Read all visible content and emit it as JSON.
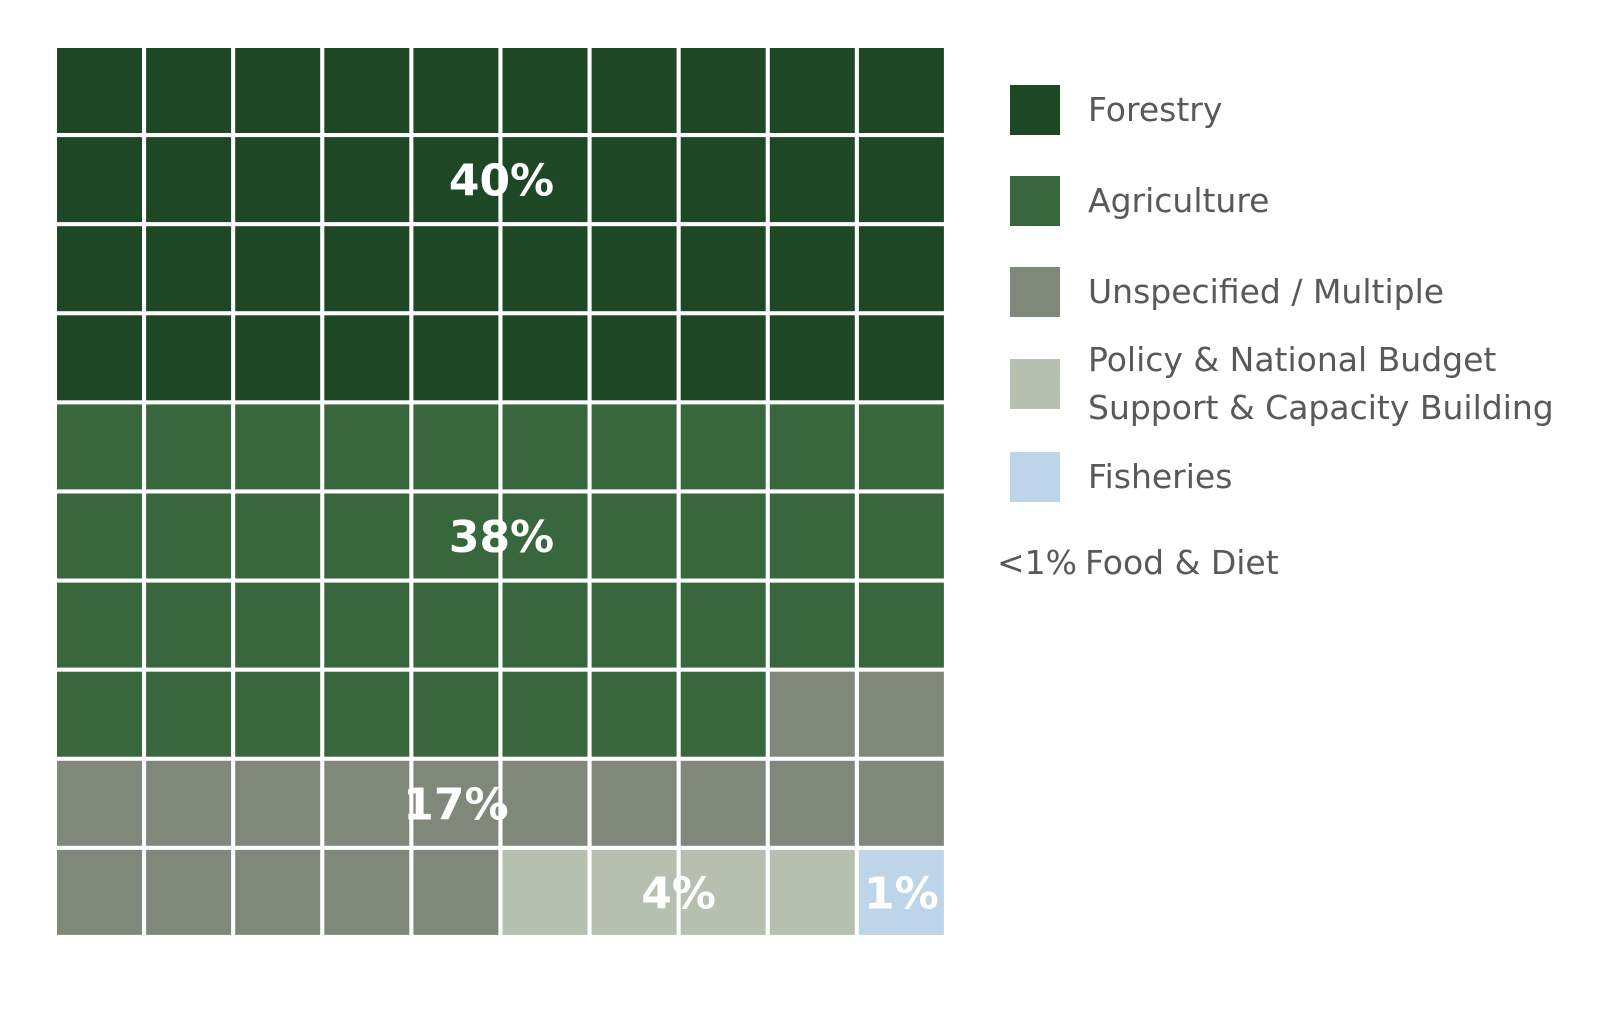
{
  "chart_data": {
    "type": "waffle",
    "grid": {
      "rows": 10,
      "cols": 10
    },
    "fill_order": "row-major from top-left",
    "categories": [
      {
        "name": "Forestry",
        "cells": 40,
        "label": "40%",
        "color": "#1e4725"
      },
      {
        "name": "Agriculture",
        "cells": 38,
        "label": "38%",
        "color": "#38673e"
      },
      {
        "name": "Unspecified / Multiple",
        "cells": 17,
        "label": "17%",
        "color": "#80887a"
      },
      {
        "name": "Policy & National Budget\nSupport & Capacity Building",
        "cells": 4,
        "label": "4%",
        "color": "#b5c1ae"
      },
      {
        "name": "Fisheries",
        "cells": 1,
        "label": "1%",
        "color": "#bed4e8"
      }
    ],
    "legend_position": "right",
    "note": {
      "value": "<1%",
      "name": "Food & Diet"
    }
  }
}
